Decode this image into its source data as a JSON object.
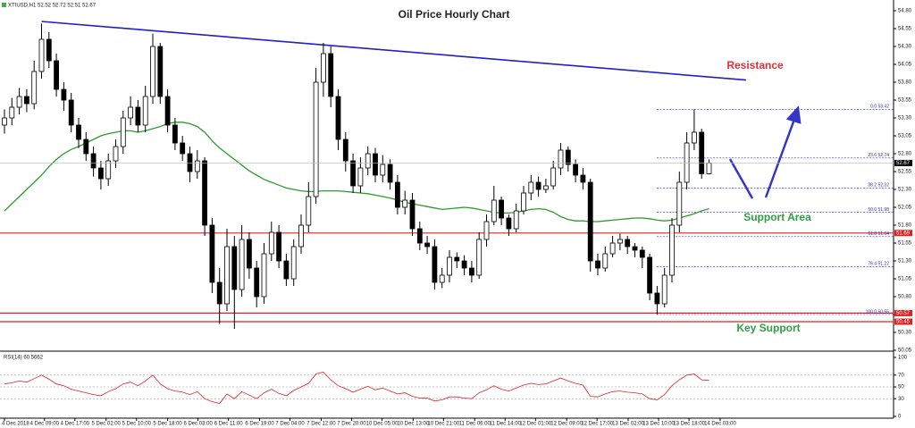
{
  "chart_data": {
    "type": "candlestick",
    "title": "Oil Price Hourly Chart",
    "header": "XTIUSD,H1 52.52 52.72 52.51 52.67",
    "ylim": [
      50.0,
      54.9
    ],
    "yticks": [
      {
        "value": 54.8,
        "label": "54.80"
      },
      {
        "value": 54.55,
        "label": "54.55"
      },
      {
        "value": 54.3,
        "label": "54.30"
      },
      {
        "value": 54.05,
        "label": "54.05"
      },
      {
        "value": 53.8,
        "label": "53.80"
      },
      {
        "value": 53.55,
        "label": "53.55"
      },
      {
        "value": 53.3,
        "label": "53.30"
      },
      {
        "value": 53.05,
        "label": "53.05"
      },
      {
        "value": 52.8,
        "label": "52.80"
      },
      {
        "value": 52.55,
        "label": "52.55"
      },
      {
        "value": 52.3,
        "label": "52.30"
      },
      {
        "value": 52.05,
        "label": "52.05"
      },
      {
        "value": 51.8,
        "label": "51.80"
      },
      {
        "value": 51.55,
        "label": "51.55"
      },
      {
        "value": 51.3,
        "label": "51.30"
      },
      {
        "value": 51.05,
        "label": "51.05"
      },
      {
        "value": 50.8,
        "label": "50.80"
      },
      {
        "value": 50.55,
        "label": "50.55"
      },
      {
        "value": 50.3,
        "label": "50.30"
      },
      {
        "value": 50.05,
        "label": "50.05"
      }
    ],
    "xticks": [
      {
        "value": 0,
        "label": "4 Dec 2018"
      },
      {
        "value": 5.4,
        "label": "4 Dec 09:00"
      },
      {
        "value": 9.5,
        "label": "4 Dec 17:00"
      },
      {
        "value": 13.7,
        "label": "5 Dec 02:00"
      },
      {
        "value": 17.8,
        "label": "5 Dec 10:00"
      },
      {
        "value": 22.0,
        "label": "5 Dec 18:00"
      },
      {
        "value": 26.1,
        "label": "6 Dec 03:00"
      },
      {
        "value": 30.2,
        "label": "6 Dec 11:00"
      },
      {
        "value": 34.4,
        "label": "6 Dec 19:00"
      },
      {
        "value": 38.5,
        "label": "7 Dec 04:00"
      },
      {
        "value": 42.7,
        "label": "7 Dec 12:00"
      },
      {
        "value": 46.8,
        "label": "7 Dec 20:00"
      },
      {
        "value": 50.9,
        "label": "10 Dec 05:00"
      },
      {
        "value": 55.1,
        "label": "10 Dec 13:00"
      },
      {
        "value": 59.2,
        "label": "10 Dec 21:00"
      },
      {
        "value": 63.4,
        "label": "11 Dec 06:00"
      },
      {
        "value": 67.5,
        "label": "11 Dec 14:00"
      },
      {
        "value": 71.6,
        "label": "12 Dec 01:00"
      },
      {
        "value": 75.8,
        "label": "12 Dec 09:00"
      },
      {
        "value": 79.9,
        "label": "12 Dec 17:00"
      },
      {
        "value": 84.1,
        "label": "13 Dec 02:00"
      },
      {
        "value": 88.2,
        "label": "13 Dec 10:00"
      },
      {
        "value": 92.3,
        "label": "13 Dec 18:00"
      },
      {
        "value": 96.5,
        "label": "14 Dec 03:00"
      }
    ],
    "open": [
      53.2,
      53.3,
      53.45,
      53.6,
      53.5,
      53.95,
      54.4,
      54.1,
      53.7,
      53.55,
      53.2,
      53.0,
      52.8,
      52.6,
      52.45,
      52.7,
      52.9,
      53.3,
      53.45,
      53.2,
      53.6,
      54.3,
      53.6,
      53.2,
      52.95,
      52.8,
      52.55,
      52.7,
      51.8,
      51.0,
      50.7,
      51.5,
      50.9,
      51.6,
      51.2,
      50.8,
      51.4,
      51.7,
      51.3,
      51.05,
      51.5,
      51.8,
      52.2,
      53.8,
      54.2,
      53.6,
      53.0,
      52.7,
      52.35,
      52.6,
      52.8,
      52.5,
      52.65,
      52.4,
      52.05,
      52.15,
      51.75,
      51.55,
      51.5,
      51.0,
      51.1,
      51.35,
      51.3,
      51.2,
      51.1,
      51.6,
      51.85,
      52.15,
      51.9,
      51.75,
      52.0,
      52.25,
      52.4,
      52.3,
      52.35,
      52.6,
      52.85,
      52.65,
      52.5,
      52.4,
      51.3,
      51.2,
      51.4,
      51.55,
      51.6,
      51.5,
      51.45,
      51.35,
      50.85,
      50.7,
      51.1,
      51.8,
      52.4,
      52.95,
      53.1,
      52.52
    ],
    "high": [
      53.42,
      53.58,
      53.72,
      53.7,
      54.1,
      54.62,
      54.5,
      54.2,
      53.8,
      53.65,
      53.3,
      53.1,
      52.9,
      52.7,
      52.8,
      53.0,
      53.4,
      53.6,
      53.55,
      53.75,
      54.48,
      54.35,
      53.7,
      53.3,
      53.05,
      52.9,
      52.85,
      52.75,
      51.9,
      51.2,
      51.75,
      51.65,
      51.8,
      51.7,
      51.3,
      51.55,
      51.85,
      51.8,
      51.4,
      51.6,
      51.95,
      52.4,
      54.0,
      54.35,
      54.3,
      53.7,
      53.1,
      52.8,
      52.75,
      52.9,
      52.88,
      52.78,
      52.72,
      52.5,
      52.28,
      52.25,
      51.85,
      51.65,
      51.6,
      51.2,
      51.45,
      51.42,
      51.38,
      51.3,
      51.7,
      51.95,
      52.35,
      52.2,
      51.95,
      52.1,
      52.35,
      52.5,
      52.48,
      52.45,
      52.7,
      52.95,
      52.9,
      52.72,
      52.6,
      52.45,
      51.4,
      51.5,
      51.65,
      51.68,
      51.65,
      51.55,
      51.5,
      51.4,
      50.95,
      51.2,
      51.9,
      52.55,
      53.1,
      53.42,
      53.15,
      52.72
    ],
    "low": [
      53.08,
      53.2,
      53.35,
      53.38,
      53.42,
      53.85,
      54.0,
      53.6,
      53.4,
      53.1,
      52.88,
      52.7,
      52.48,
      52.3,
      52.35,
      52.6,
      52.8,
      53.2,
      53.1,
      53.1,
      53.5,
      53.5,
      53.1,
      52.85,
      52.7,
      52.4,
      52.45,
      51.65,
      50.85,
      50.42,
      50.6,
      50.35,
      50.8,
      51.05,
      50.65,
      50.7,
      51.3,
      51.2,
      50.95,
      50.95,
      51.4,
      51.7,
      52.1,
      53.6,
      53.45,
      52.85,
      52.55,
      52.25,
      52.25,
      52.5,
      52.4,
      52.4,
      52.3,
      51.95,
      51.95,
      51.65,
      51.45,
      51.4,
      50.9,
      50.92,
      51.0,
      51.2,
      51.1,
      51.0,
      51.05,
      51.5,
      51.8,
      51.8,
      51.65,
      51.7,
      51.95,
      52.15,
      52.2,
      52.25,
      52.3,
      52.5,
      52.55,
      52.4,
      52.3,
      51.15,
      51.1,
      51.15,
      51.35,
      51.45,
      51.4,
      51.35,
      51.2,
      50.75,
      50.55,
      50.65,
      51.0,
      51.7,
      52.3,
      52.85,
      52.45,
      52.51
    ],
    "close": [
      53.3,
      53.45,
      53.6,
      53.5,
      53.95,
      54.4,
      54.1,
      53.7,
      53.55,
      53.2,
      53.0,
      52.8,
      52.6,
      52.45,
      52.7,
      52.9,
      53.3,
      53.45,
      53.2,
      53.6,
      54.3,
      53.6,
      53.2,
      52.95,
      52.8,
      52.55,
      52.7,
      51.8,
      51.0,
      50.7,
      51.5,
      50.9,
      51.6,
      51.2,
      50.8,
      51.4,
      51.7,
      51.3,
      51.05,
      51.5,
      51.8,
      52.2,
      53.8,
      54.2,
      53.6,
      53.0,
      52.7,
      52.35,
      52.6,
      52.8,
      52.5,
      52.65,
      52.4,
      52.05,
      52.15,
      51.75,
      51.55,
      51.5,
      51.0,
      51.1,
      51.35,
      51.3,
      51.2,
      51.1,
      51.6,
      51.85,
      52.15,
      51.9,
      51.75,
      52.0,
      52.25,
      52.4,
      52.3,
      52.35,
      52.6,
      52.85,
      52.65,
      52.5,
      52.4,
      51.3,
      51.2,
      51.4,
      51.55,
      51.6,
      51.5,
      51.45,
      51.35,
      50.85,
      50.7,
      51.1,
      51.8,
      52.4,
      52.95,
      53.1,
      52.52,
      52.67
    ],
    "moving_average": {
      "color": "#2e9b2e",
      "values": [
        52.0,
        52.1,
        52.2,
        52.3,
        52.4,
        52.5,
        52.62,
        52.72,
        52.8,
        52.86,
        52.9,
        52.95,
        53.0,
        53.05,
        53.08,
        53.1,
        53.12,
        53.12,
        53.1,
        53.12,
        53.15,
        53.18,
        53.22,
        53.24,
        53.24,
        53.22,
        53.18,
        53.1,
        52.98,
        52.88,
        52.8,
        52.72,
        52.64,
        52.56,
        52.5,
        52.44,
        52.4,
        52.36,
        52.32,
        52.3,
        52.28,
        52.27,
        52.27,
        52.28,
        52.28,
        52.28,
        52.27,
        52.26,
        52.25,
        52.24,
        52.22,
        52.2,
        52.18,
        52.15,
        52.12,
        52.1,
        52.08,
        52.06,
        52.04,
        52.02,
        52.03,
        52.04,
        52.05,
        52.04,
        52.02,
        52.0,
        51.98,
        51.97,
        51.97,
        51.98,
        52.0,
        52.02,
        52.03,
        52.02,
        51.98,
        51.92,
        51.88,
        51.86,
        51.86,
        51.85,
        51.85,
        51.86,
        51.87,
        51.88,
        51.89,
        51.9,
        51.9,
        51.89,
        51.87,
        51.86,
        51.87,
        51.9,
        51.93,
        51.96,
        52.0,
        52.03
      ]
    },
    "trendline": {
      "color": "#2020c8",
      "x": [
        5,
        100
      ],
      "y": [
        54.65,
        53.83
      ]
    },
    "levels": [
      51.69,
      50.57,
      50.45
    ],
    "level_color": "#e02020",
    "fib": [
      {
        "label": "0.0 53.42",
        "value": 53.42
      },
      {
        "label": "23.6 52.74",
        "value": 52.74
      },
      {
        "label": "38.2 52.32",
        "value": 52.32
      },
      {
        "label": "50.0 51.98",
        "value": 51.98
      },
      {
        "label": "61.8 51.64",
        "value": 51.64
      },
      {
        "label": "76.4 51.22",
        "value": 51.22
      },
      {
        "label": "100.0 50.55",
        "value": 50.55
      }
    ],
    "fib_color": "#3030c0",
    "annotations": [
      {
        "text": "Resistance",
        "color": "#e03038"
      },
      {
        "text": "Support Area",
        "color": "#2ea043"
      },
      {
        "text": "Key Support",
        "color": "#2ea043"
      }
    ],
    "rsi": {
      "label": "RSI(14) 60.5662",
      "color": "#e02020",
      "ylim": [
        0,
        100
      ],
      "yticks": [
        100,
        70,
        50,
        30,
        0
      ],
      "values": [
        55,
        57,
        60,
        58,
        64,
        70,
        63,
        55,
        52,
        46,
        43,
        40,
        37,
        35,
        42,
        47,
        55,
        58,
        52,
        60,
        70,
        55,
        47,
        43,
        41,
        37,
        42,
        30,
        25,
        22,
        38,
        30,
        42,
        36,
        30,
        40,
        46,
        39,
        35,
        44,
        50,
        56,
        72,
        75,
        62,
        52,
        47,
        41,
        46,
        51,
        45,
        48,
        43,
        38,
        40,
        34,
        31,
        31,
        26,
        28,
        33,
        33,
        31,
        30,
        40,
        45,
        52,
        46,
        43,
        48,
        53,
        56,
        54,
        55,
        60,
        65,
        60,
        56,
        53,
        34,
        33,
        38,
        42,
        43,
        41,
        40,
        38,
        30,
        28,
        37,
        52,
        62,
        70,
        72,
        62,
        61
      ]
    }
  }
}
